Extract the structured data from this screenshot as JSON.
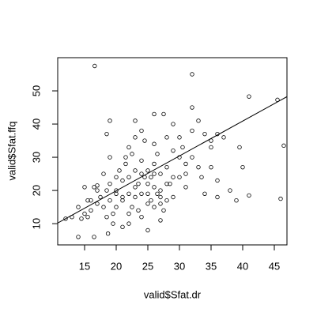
{
  "chart_data": {
    "type": "scatter",
    "x_label": "valid$Sfat.dr",
    "y_label": "valid$Sfat.ffq",
    "xlim": [
      10.75,
      47
    ],
    "ylim": [
      3.6,
      60
    ],
    "xticks": [
      15,
      20,
      25,
      30,
      35,
      40,
      45
    ],
    "yticks": [
      10,
      20,
      30,
      40,
      50
    ],
    "color": "#000000",
    "regression_line": {
      "intercept": -1.1,
      "slope": 1.05
    },
    "x": [
      12,
      13,
      14,
      14.5,
      15,
      15,
      15.5,
      16,
      16,
      16.5,
      17,
      17,
      17.5,
      18,
      18,
      18.5,
      18.5,
      19,
      19,
      19,
      19.5,
      20,
      20,
      20,
      20.5,
      21,
      21,
      21,
      21.5,
      22,
      22,
      22,
      22,
      22.5,
      23,
      23,
      23,
      23.5,
      24,
      24,
      24,
      24,
      24.5,
      25,
      25,
      25,
      25,
      25.5,
      26,
      26,
      26,
      26,
      26.5,
      27,
      27,
      27,
      27,
      27.5,
      28,
      28,
      28,
      28.5,
      29,
      29,
      29,
      30,
      30,
      30.5,
      31,
      31,
      32,
      32,
      33,
      33,
      33.5,
      34,
      34,
      35,
      35,
      36,
      36,
      37,
      38,
      39,
      39.5,
      40,
      41,
      45.5,
      46,
      46.5,
      16.6,
      32,
      41,
      14,
      16.5,
      18.7,
      19.5,
      22,
      23.5,
      25,
      27.5,
      18.5,
      21.5,
      23,
      26,
      29,
      24,
      26.5,
      28,
      20,
      21,
      22.5,
      23,
      24.5,
      25.5,
      26,
      27,
      19,
      17,
      15.5,
      30,
      31,
      36,
      32,
      35
    ],
    "values": [
      11.5,
      12,
      15,
      11.5,
      21,
      13,
      12,
      17,
      14,
      21,
      20,
      16,
      18,
      25,
      15,
      20,
      12,
      41,
      22,
      17,
      13,
      24,
      19,
      15,
      26,
      23,
      18,
      9,
      28,
      33,
      24,
      19,
      13,
      31,
      41,
      26,
      18,
      22,
      38,
      25,
      19,
      12,
      35,
      26,
      22,
      16,
      8,
      24,
      43,
      28,
      21,
      15,
      19,
      25,
      20,
      16,
      11,
      43,
      36,
      27,
      17,
      22,
      24,
      18,
      32,
      30,
      24,
      33,
      28,
      21,
      38,
      30,
      41,
      27,
      24,
      37,
      19,
      33,
      27,
      23,
      18,
      36,
      20,
      17,
      33,
      27,
      18.5,
      47.3,
      17.5,
      33.5,
      57.5,
      55,
      48.3,
      6,
      6,
      7,
      10,
      10,
      14,
      19,
      14,
      37,
      30,
      36,
      34,
      40,
      29,
      31,
      22,
      20,
      17,
      15,
      21,
      24,
      17,
      25,
      18,
      30,
      21.5,
      17,
      36,
      25,
      37,
      45,
      35
    ]
  }
}
